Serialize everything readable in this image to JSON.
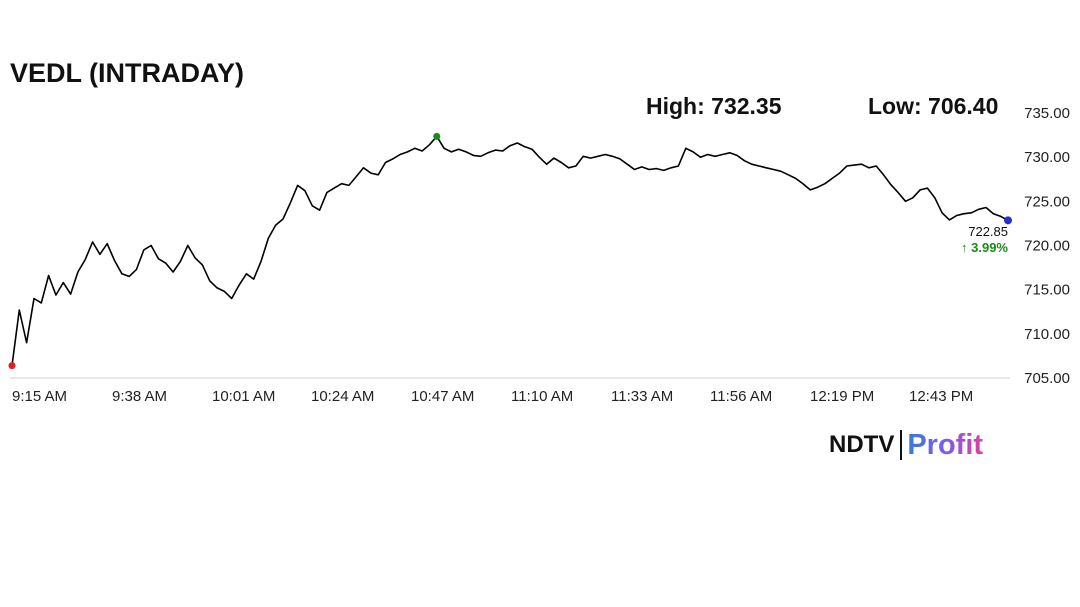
{
  "header": {
    "title": "VEDL (INTRADAY)",
    "high_label": "High: 732.35",
    "low_label": "Low: 706.40"
  },
  "logo": {
    "brand": "NDTV",
    "sub": "Profit"
  },
  "chart_data": {
    "type": "line",
    "title": "VEDL (INTRADAY)",
    "xlabel": "",
    "ylabel": "",
    "x_tick_labels": [
      "9:15 AM",
      "9:38 AM",
      "10:01 AM",
      "10:24 AM",
      "10:47 AM",
      "11:10 AM",
      "11:33 AM",
      "11:56 AM",
      "12:19 PM",
      "12:43 PM"
    ],
    "y_tick_labels": [
      "705.00",
      "710.00",
      "715.00",
      "720.00",
      "725.00",
      "730.00",
      "735.00"
    ],
    "ylim": [
      705,
      735
    ],
    "y_axis_position": "right",
    "grid": false,
    "high": 732.35,
    "low": 706.4,
    "last_price": "722.85",
    "change": "3.99%",
    "change_direction": "up",
    "start_marker_color": "#e02020",
    "high_marker_color": "#1a8a1a",
    "end_marker_color": "#2233cc",
    "line_color": "#000000",
    "series": [
      {
        "values": [
          [
            0,
            706.4
          ],
          [
            1,
            712.7
          ],
          [
            2,
            709.0
          ],
          [
            3,
            714.0
          ],
          [
            4,
            713.5
          ],
          [
            5,
            716.6
          ],
          [
            6,
            714.4
          ],
          [
            7,
            715.8
          ],
          [
            8,
            714.5
          ],
          [
            9,
            717.0
          ],
          [
            10,
            718.4
          ],
          [
            11,
            720.4
          ],
          [
            12,
            719.0
          ],
          [
            13,
            720.2
          ],
          [
            14,
            718.3
          ],
          [
            15,
            716.8
          ],
          [
            16,
            716.5
          ],
          [
            17,
            717.3
          ],
          [
            18,
            719.5
          ],
          [
            19,
            720.0
          ],
          [
            20,
            718.5
          ],
          [
            21,
            718.0
          ],
          [
            22,
            717.0
          ],
          [
            23,
            718.2
          ],
          [
            24,
            720.0
          ],
          [
            25,
            718.6
          ],
          [
            26,
            717.8
          ],
          [
            27,
            716.0
          ],
          [
            28,
            715.2
          ],
          [
            29,
            714.8
          ],
          [
            30,
            714.0
          ],
          [
            31,
            715.5
          ],
          [
            32,
            716.8
          ],
          [
            33,
            716.2
          ],
          [
            34,
            718.2
          ],
          [
            35,
            720.8
          ],
          [
            36,
            722.3
          ],
          [
            37,
            723.0
          ],
          [
            38,
            724.8
          ],
          [
            39,
            726.8
          ],
          [
            40,
            726.2
          ],
          [
            41,
            724.5
          ],
          [
            42,
            724.0
          ],
          [
            43,
            726.0
          ],
          [
            44,
            726.5
          ],
          [
            45,
            727.0
          ],
          [
            46,
            726.8
          ],
          [
            47,
            727.8
          ],
          [
            48,
            728.8
          ],
          [
            49,
            728.2
          ],
          [
            50,
            728.0
          ],
          [
            51,
            729.4
          ],
          [
            52,
            729.8
          ],
          [
            53,
            730.3
          ],
          [
            54,
            730.6
          ],
          [
            55,
            731.0
          ],
          [
            56,
            730.7
          ],
          [
            57,
            731.4
          ],
          [
            58,
            732.35
          ],
          [
            59,
            731.0
          ],
          [
            60,
            730.6
          ],
          [
            61,
            730.9
          ],
          [
            62,
            730.6
          ],
          [
            63,
            730.2
          ],
          [
            64,
            730.1
          ],
          [
            65,
            730.5
          ],
          [
            66,
            730.8
          ],
          [
            67,
            730.7
          ],
          [
            68,
            731.3
          ],
          [
            69,
            731.6
          ],
          [
            70,
            731.2
          ],
          [
            71,
            730.9
          ],
          [
            72,
            730.0
          ],
          [
            73,
            729.2
          ],
          [
            74,
            729.9
          ],
          [
            75,
            729.4
          ],
          [
            76,
            728.8
          ],
          [
            77,
            729.0
          ],
          [
            78,
            730.1
          ],
          [
            79,
            729.9
          ],
          [
            80,
            730.1
          ],
          [
            81,
            730.3
          ],
          [
            82,
            730.1
          ],
          [
            83,
            729.8
          ],
          [
            84,
            729.2
          ],
          [
            85,
            728.6
          ],
          [
            86,
            728.9
          ],
          [
            87,
            728.6
          ],
          [
            88,
            728.7
          ],
          [
            89,
            728.5
          ],
          [
            90,
            728.8
          ],
          [
            91,
            729.0
          ],
          [
            92,
            731.0
          ],
          [
            93,
            730.6
          ],
          [
            94,
            730.0
          ],
          [
            95,
            730.3
          ],
          [
            96,
            730.1
          ],
          [
            97,
            730.3
          ],
          [
            98,
            730.5
          ],
          [
            99,
            730.2
          ],
          [
            100,
            729.6
          ],
          [
            101,
            729.2
          ],
          [
            102,
            729.0
          ],
          [
            103,
            728.8
          ],
          [
            104,
            728.6
          ],
          [
            105,
            728.4
          ],
          [
            106,
            728.0
          ],
          [
            107,
            727.6
          ],
          [
            108,
            727.0
          ],
          [
            109,
            726.3
          ],
          [
            110,
            726.6
          ],
          [
            111,
            727.0
          ],
          [
            112,
            727.6
          ],
          [
            113,
            728.2
          ],
          [
            114,
            729.0
          ],
          [
            115,
            729.1
          ],
          [
            116,
            729.2
          ],
          [
            117,
            728.8
          ],
          [
            118,
            729.0
          ],
          [
            119,
            728.0
          ],
          [
            120,
            726.9
          ],
          [
            121,
            726.0
          ],
          [
            122,
            725.0
          ],
          [
            123,
            725.4
          ],
          [
            124,
            726.3
          ],
          [
            125,
            726.5
          ],
          [
            126,
            725.4
          ],
          [
            127,
            723.7
          ],
          [
            128,
            722.9
          ],
          [
            129,
            723.4
          ],
          [
            130,
            723.6
          ],
          [
            131,
            723.7
          ],
          [
            132,
            724.1
          ],
          [
            133,
            724.3
          ],
          [
            134,
            723.6
          ],
          [
            135,
            723.3
          ],
          [
            136,
            722.85
          ]
        ]
      }
    ]
  }
}
